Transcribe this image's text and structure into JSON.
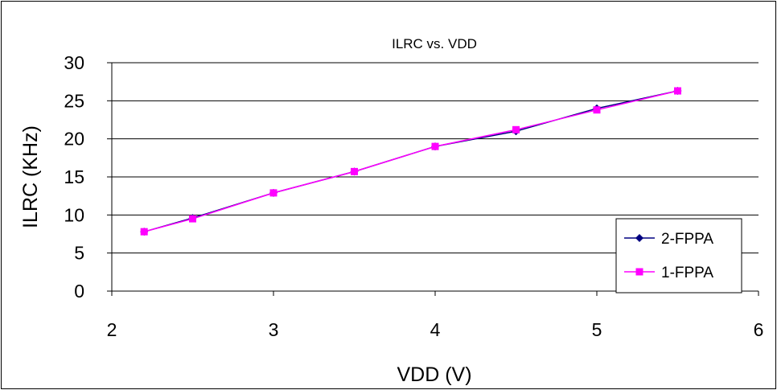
{
  "chart_data": {
    "type": "line",
    "title": "ILRC vs. VDD",
    "xlabel": "VDD (V)",
    "ylabel": "ILRC (KHz)",
    "xlim": [
      2,
      6
    ],
    "ylim": [
      0,
      30
    ],
    "xticks": [
      2,
      3,
      4,
      5,
      6
    ],
    "yticks": [
      0,
      5,
      10,
      15,
      20,
      25,
      30
    ],
    "grid": "horizontal",
    "legend_position": "right",
    "series": [
      {
        "name": "2-FPPA",
        "color": "#000080",
        "marker": "diamond",
        "x": [
          2.2,
          2.5,
          3.0,
          3.5,
          4.0,
          4.5,
          5.0,
          5.5
        ],
        "y": [
          7.8,
          9.6,
          12.9,
          15.7,
          19.0,
          21.0,
          24.0,
          26.3
        ]
      },
      {
        "name": "1-FPPA",
        "color": "#ff00ff",
        "marker": "square",
        "x": [
          2.2,
          2.5,
          3.0,
          3.5,
          4.0,
          4.5,
          5.0,
          5.5
        ],
        "y": [
          7.8,
          9.5,
          12.9,
          15.7,
          19.0,
          21.2,
          23.8,
          26.3
        ]
      }
    ]
  }
}
